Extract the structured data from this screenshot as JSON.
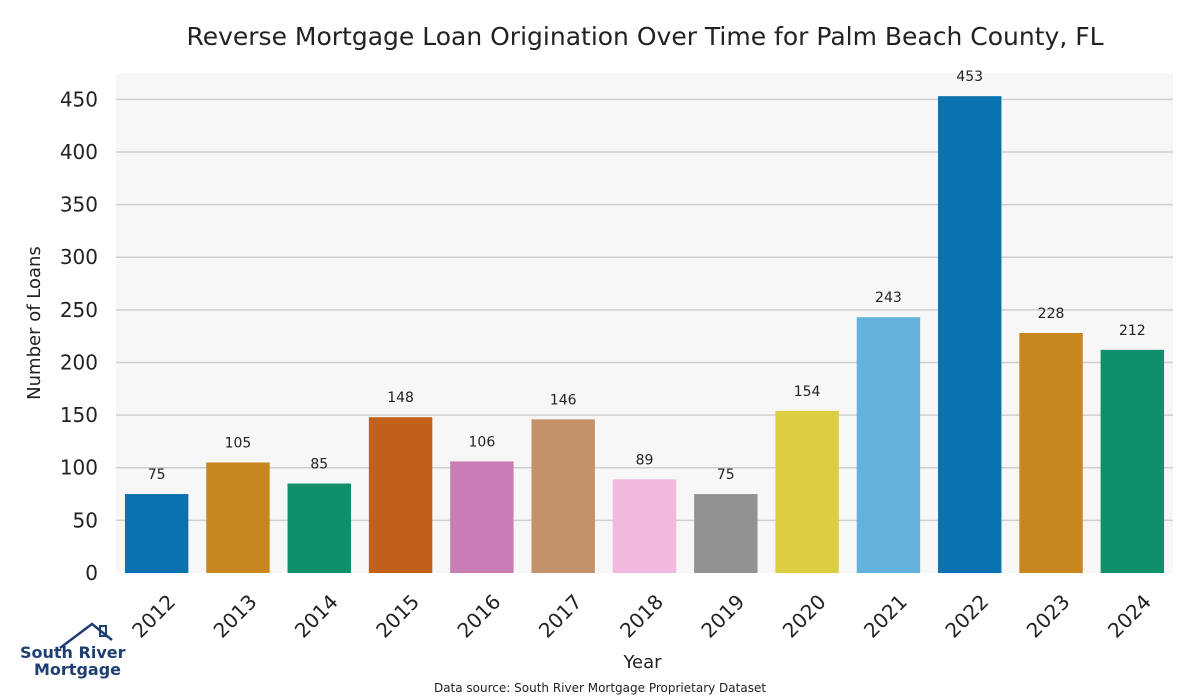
{
  "chart_data": {
    "type": "bar",
    "title": "Reverse Mortgage Loan Origination Over Time for Palm Beach County, FL",
    "xlabel": "Year",
    "ylabel": "Number of Loans",
    "categories": [
      "2012",
      "2013",
      "2014",
      "2015",
      "2016",
      "2017",
      "2018",
      "2019",
      "2020",
      "2021",
      "2022",
      "2023",
      "2024"
    ],
    "values": [
      75,
      105,
      85,
      148,
      106,
      146,
      89,
      75,
      154,
      243,
      453,
      228,
      212
    ],
    "colors": [
      "#0a72b0",
      "#c8861f",
      "#0f8f6b",
      "#c25f1a",
      "#c97db7",
      "#c4926a",
      "#f3b8de",
      "#929292",
      "#dccd42",
      "#62b2dc",
      "#0a72b0",
      "#c8861f",
      "#0f8f6b"
    ],
    "yticks": [
      0,
      50,
      100,
      150,
      200,
      250,
      300,
      350,
      400,
      450
    ],
    "ylim": [
      0,
      475
    ],
    "grid": true,
    "background": "#f7f7f7"
  },
  "source_note": "Data source: South River Mortgage Proprietary Dataset",
  "logo": {
    "line1": "South River",
    "line2": "Mortgage",
    "color": "#1f3f73"
  }
}
